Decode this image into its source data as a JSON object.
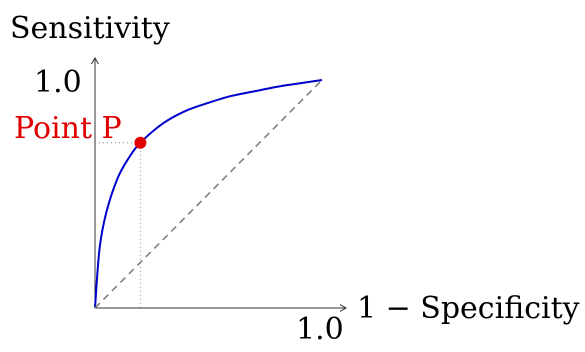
{
  "chart_data": {
    "type": "line",
    "title": "",
    "xlabel": "1 − Specificity",
    "ylabel": "Sensitivity",
    "xlim": [
      0,
      1.0
    ],
    "ylim": [
      0,
      1.0
    ],
    "x_tick_label": "1.0",
    "y_tick_label": "1.0",
    "grid": false,
    "legend": "none",
    "series": [
      {
        "style": "solid",
        "color": "#0000cc",
        "x": [
          0,
          0.02,
          0.05,
          0.1,
          0.15,
          0.2,
          0.3,
          0.4,
          0.5,
          0.6,
          0.7,
          0.8,
          0.9,
          1.0
        ],
        "y": [
          0,
          0.26,
          0.42,
          0.57,
          0.66,
          0.725,
          0.81,
          0.865,
          0.9,
          0.93,
          0.95,
          0.97,
          0.985,
          1.0
        ]
      },
      {
        "style": "dashed",
        "color": "#808080",
        "x": [
          0,
          1.0
        ],
        "y": [
          0,
          1.0
        ]
      }
    ],
    "annotation": {
      "label": "Point P",
      "color": "#e00000",
      "x": 0.2,
      "y": 0.725
    }
  }
}
